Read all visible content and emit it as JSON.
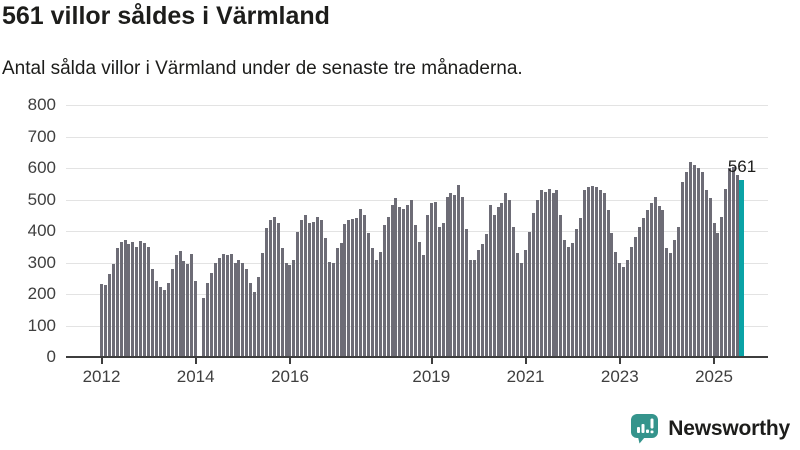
{
  "header": {
    "title": "561 villor såldes i Värmland",
    "subtitle": "Antal sålda villor i Värmland under de senaste tre månaderna."
  },
  "chart_data": {
    "type": "bar",
    "title": "561 villor såldes i Värmland",
    "subtitle": "Antal sålda villor i Värmland under de senaste tre månaderna.",
    "xlabel": "",
    "ylabel": "",
    "frequency": "monthly",
    "start_month": "2012-01",
    "end_month": "2025-08",
    "missing_months": [
      "2014-02"
    ],
    "ylim": [
      0,
      800
    ],
    "yticks": [
      0,
      100,
      200,
      300,
      400,
      500,
      600,
      700,
      800
    ],
    "xtick_years": [
      "2012",
      "2014",
      "2016",
      "2019",
      "2021",
      "2023",
      "2025"
    ],
    "grid": true,
    "legend": false,
    "values": [
      233,
      228,
      263,
      295,
      345,
      365,
      370,
      358,
      364,
      350,
      367,
      362,
      350,
      281,
      242,
      221,
      213,
      236,
      278,
      323,
      337,
      306,
      295,
      326,
      240,
      null,
      186,
      234,
      266,
      297,
      313,
      327,
      323,
      327,
      297,
      308,
      297,
      281,
      235,
      207,
      255,
      330,
      410,
      435,
      445,
      425,
      345,
      297,
      292,
      308,
      398,
      435,
      450,
      424,
      430,
      445,
      435,
      377,
      303,
      297,
      345,
      361,
      421,
      435,
      438,
      440,
      470,
      452,
      393,
      345,
      308,
      334,
      419,
      445,
      482,
      506,
      477,
      471,
      484,
      498,
      419,
      366,
      324,
      450,
      488,
      493,
      414,
      424,
      509,
      520,
      514,
      546,
      509,
      408,
      308,
      308,
      340,
      360,
      390,
      483,
      451,
      477,
      488,
      520,
      498,
      414,
      329,
      297,
      340,
      398,
      456,
      498,
      530,
      525,
      535,
      520,
      530,
      451,
      371,
      350,
      361,
      408,
      440,
      530,
      539,
      543,
      539,
      530,
      522,
      467,
      393,
      334,
      297,
      285,
      308,
      350,
      382,
      414,
      440,
      467,
      488,
      509,
      479,
      467,
      345,
      329,
      371,
      414,
      557,
      588,
      620,
      610,
      599,
      588,
      530,
      504,
      424,
      393,
      445,
      535,
      599,
      604,
      578,
      561
    ],
    "highlight": {
      "index": 163,
      "value": 561,
      "label": "561",
      "month": "2025-08"
    },
    "colors": {
      "bar": "#6d6c76",
      "highlight": "#0aa3a6",
      "gridline": "#e3e3e3",
      "axis": "#3d3d3d",
      "tick_label": "#3f3f3f"
    }
  },
  "branding": {
    "logo_text": "Newsworthy",
    "logo_icon": "bar-chart-speech-bubble-icon",
    "logo_color": "#35948c"
  }
}
